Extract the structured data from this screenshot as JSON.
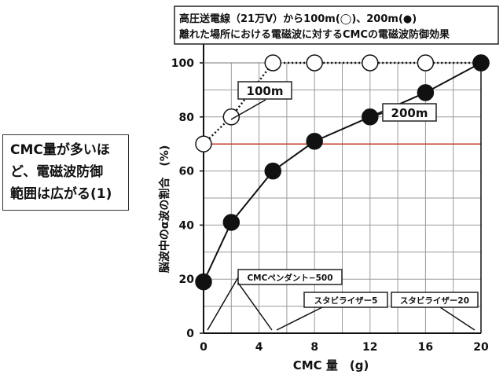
{
  "side_note": {
    "lines": [
      "CMC量が多いほ",
      "ど、電磁波防御",
      "範囲は広がる(1)"
    ]
  },
  "chart_data": {
    "type": "line",
    "title": "高圧送電線（21万V）から100m(◯)、200m(●)",
    "subtitle": "離れた場所における電磁波に対するCMCの電磁波防御効果",
    "xlabel": "CMC 量　(g)",
    "ylabel": "脳波中のα波の割合　(%)",
    "xlim": [
      0,
      20
    ],
    "ylim": [
      0,
      100
    ],
    "xticks": [
      0,
      4,
      8,
      12,
      16,
      20
    ],
    "yticks": [
      0,
      20,
      40,
      60,
      80,
      100
    ],
    "grid": true,
    "reference_line": {
      "y": 70,
      "color": "#c0392b"
    },
    "series": [
      {
        "name": "100m",
        "marker": "open-circle",
        "line_style": "dotted",
        "x": [
          0,
          2,
          5,
          8,
          12,
          16,
          20
        ],
        "y": [
          70,
          80,
          100,
          100,
          100,
          100,
          100
        ]
      },
      {
        "name": "200m",
        "marker": "filled-circle",
        "line_style": "solid",
        "x": [
          0,
          2,
          5,
          8,
          12,
          16,
          20
        ],
        "y": [
          19,
          41,
          60,
          71,
          80,
          89,
          100
        ]
      }
    ],
    "annotations": [
      {
        "text": "CMCペンダント−500",
        "x": 5
      },
      {
        "text": "スタビライザー5",
        "x": 5
      },
      {
        "text": "スタビライザー20",
        "x": 20
      }
    ]
  }
}
